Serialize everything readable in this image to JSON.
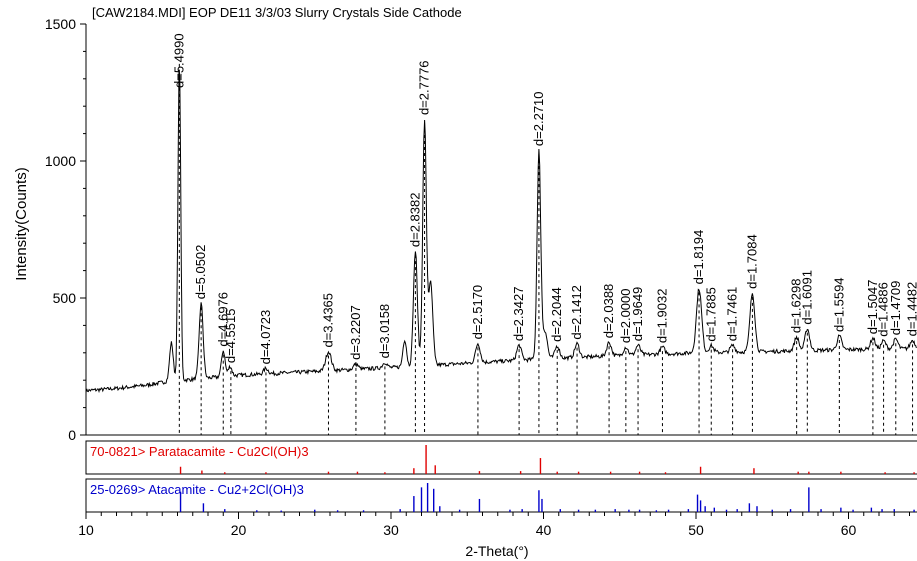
{
  "chart_data": {
    "type": "line",
    "title": "[CAW2184.MDI] EOP DE11 3/3/03 Slurry Crystals Side Cathode",
    "xlabel": "2-Theta(°)",
    "ylabel": "Intensity(Counts)",
    "xlim": [
      10,
      65
    ],
    "ylim": [
      0,
      1500
    ],
    "x_ticks": [
      "10",
      "20",
      "30",
      "40",
      "50",
      "60"
    ],
    "y_ticks": [
      "0",
      "500",
      "1000",
      "1500"
    ],
    "grid": false,
    "colors": {
      "pattern": "#000000",
      "ref1": "#e00000",
      "ref2": "#0000cc"
    },
    "baseline": [
      [
        10,
        162
      ],
      [
        12,
        170
      ],
      [
        14,
        182
      ],
      [
        15.3,
        195
      ],
      [
        20,
        218
      ],
      [
        25,
        232
      ],
      [
        30,
        246
      ],
      [
        35,
        262
      ],
      [
        40,
        278
      ],
      [
        45,
        290
      ],
      [
        50,
        300
      ],
      [
        55,
        305
      ],
      [
        60,
        312
      ],
      [
        65,
        316
      ]
    ],
    "peaks": [
      {
        "x": 15.6,
        "height": 140,
        "width": 0.12
      },
      {
        "x": 16.12,
        "height": 1170,
        "width": 0.09
      },
      {
        "x": 17.55,
        "height": 275,
        "width": 0.13
      },
      {
        "x": 19.0,
        "height": 95,
        "width": 0.12
      },
      {
        "x": 19.45,
        "height": 35,
        "width": 0.12
      },
      {
        "x": 21.8,
        "height": 20,
        "width": 0.15
      },
      {
        "x": 25.9,
        "height": 70,
        "width": 0.18
      },
      {
        "x": 27.7,
        "height": 20,
        "width": 0.15
      },
      {
        "x": 29.6,
        "height": 20,
        "width": 0.15
      },
      {
        "x": 30.9,
        "height": 100,
        "width": 0.12
      },
      {
        "x": 31.6,
        "height": 420,
        "width": 0.13
      },
      {
        "x": 32.2,
        "height": 895,
        "width": 0.12
      },
      {
        "x": 32.6,
        "height": 300,
        "width": 0.14
      },
      {
        "x": 35.7,
        "height": 70,
        "width": 0.15
      },
      {
        "x": 38.4,
        "height": 55,
        "width": 0.15
      },
      {
        "x": 39.7,
        "height": 760,
        "width": 0.12
      },
      {
        "x": 40.1,
        "height": 100,
        "width": 0.15
      },
      {
        "x": 40.9,
        "height": 45,
        "width": 0.15
      },
      {
        "x": 42.2,
        "height": 50,
        "width": 0.15
      },
      {
        "x": 44.3,
        "height": 50,
        "width": 0.15
      },
      {
        "x": 45.4,
        "height": 30,
        "width": 0.15
      },
      {
        "x": 46.2,
        "height": 35,
        "width": 0.15
      },
      {
        "x": 47.8,
        "height": 25,
        "width": 0.15
      },
      {
        "x": 50.2,
        "height": 235,
        "width": 0.17
      },
      {
        "x": 51.0,
        "height": 25,
        "width": 0.15
      },
      {
        "x": 52.4,
        "height": 25,
        "width": 0.15
      },
      {
        "x": 53.7,
        "height": 215,
        "width": 0.16
      },
      {
        "x": 56.6,
        "height": 50,
        "width": 0.15
      },
      {
        "x": 57.3,
        "height": 80,
        "width": 0.15
      },
      {
        "x": 59.4,
        "height": 50,
        "width": 0.15
      },
      {
        "x": 61.6,
        "height": 40,
        "width": 0.15
      },
      {
        "x": 62.3,
        "height": 30,
        "width": 0.15
      },
      {
        "x": 63.1,
        "height": 35,
        "width": 0.15
      },
      {
        "x": 64.2,
        "height": 30,
        "width": 0.15
      }
    ],
    "d_labels": [
      {
        "x": 16.12,
        "label": "d=5.4990"
      },
      {
        "x": 17.55,
        "label": "d=5.0502"
      },
      {
        "x": 19.0,
        "label": "d=4.6976"
      },
      {
        "x": 19.5,
        "label": "d=4.5515"
      },
      {
        "x": 21.8,
        "label": "d=4.0723"
      },
      {
        "x": 25.9,
        "label": "d=3.4365"
      },
      {
        "x": 27.7,
        "label": "d=3.2207"
      },
      {
        "x": 29.6,
        "label": "d=3.0158"
      },
      {
        "x": 31.6,
        "label": "d=2.8382"
      },
      {
        "x": 32.2,
        "label": "d=2.7776"
      },
      {
        "x": 35.7,
        "label": "d=2.5170"
      },
      {
        "x": 38.4,
        "label": "d=2.3427"
      },
      {
        "x": 39.7,
        "label": "d=2.2710"
      },
      {
        "x": 40.9,
        "label": "d=2.2044"
      },
      {
        "x": 42.2,
        "label": "d=2.1412"
      },
      {
        "x": 44.3,
        "label": "d=2.0388"
      },
      {
        "x": 45.4,
        "label": "d=2.0000"
      },
      {
        "x": 46.2,
        "label": "d=1.9649"
      },
      {
        "x": 47.8,
        "label": "d=1.9032"
      },
      {
        "x": 50.2,
        "label": "d=1.8194"
      },
      {
        "x": 51.0,
        "label": "d=1.7885"
      },
      {
        "x": 52.4,
        "label": "d=1.7461"
      },
      {
        "x": 53.7,
        "label": "d=1.7084"
      },
      {
        "x": 56.6,
        "label": "d=1.6298"
      },
      {
        "x": 57.3,
        "label": "d=1.6091"
      },
      {
        "x": 59.4,
        "label": "d=1.5594"
      },
      {
        "x": 61.6,
        "label": "d=1.5047"
      },
      {
        "x": 62.3,
        "label": "d=1.4886"
      },
      {
        "x": 63.1,
        "label": "d=1.4709"
      },
      {
        "x": 64.2,
        "label": "d=1.4482"
      }
    ],
    "reference_patterns": [
      {
        "label": "70-0821> Paratacamite - Cu2Cl(OH)3",
        "color": "#e00000",
        "lines": [
          [
            16.2,
            25
          ],
          [
            17.6,
            12
          ],
          [
            19.1,
            6
          ],
          [
            21.8,
            6
          ],
          [
            25.9,
            8
          ],
          [
            27.8,
            8
          ],
          [
            29.6,
            6
          ],
          [
            31.5,
            20
          ],
          [
            32.3,
            100
          ],
          [
            32.9,
            30
          ],
          [
            35.8,
            10
          ],
          [
            38.5,
            10
          ],
          [
            39.8,
            55
          ],
          [
            40.9,
            8
          ],
          [
            42.3,
            8
          ],
          [
            44.4,
            8
          ],
          [
            46.3,
            8
          ],
          [
            48.0,
            6
          ],
          [
            50.3,
            25
          ],
          [
            53.8,
            20
          ],
          [
            56.7,
            8
          ],
          [
            57.4,
            8
          ],
          [
            59.5,
            8
          ],
          [
            62.4,
            6
          ],
          [
            64.3,
            6
          ]
        ]
      },
      {
        "label": "25-0269> Atacamite - Cu2+2Cl(OH)3",
        "color": "#0000cc",
        "lines": [
          [
            16.2,
            70
          ],
          [
            17.7,
            30
          ],
          [
            19.1,
            10
          ],
          [
            21.2,
            6
          ],
          [
            22.8,
            5
          ],
          [
            25.0,
            8
          ],
          [
            26.5,
            6
          ],
          [
            28.2,
            6
          ],
          [
            30.6,
            10
          ],
          [
            31.5,
            55
          ],
          [
            32.0,
            85
          ],
          [
            32.4,
            100
          ],
          [
            32.8,
            80
          ],
          [
            33.2,
            20
          ],
          [
            34.5,
            8
          ],
          [
            35.8,
            45
          ],
          [
            37.8,
            8
          ],
          [
            38.6,
            10
          ],
          [
            39.7,
            75
          ],
          [
            39.9,
            45
          ],
          [
            41.1,
            10
          ],
          [
            42.3,
            8
          ],
          [
            43.4,
            8
          ],
          [
            44.7,
            10
          ],
          [
            45.6,
            8
          ],
          [
            46.3,
            8
          ],
          [
            47.4,
            6
          ],
          [
            48.2,
            8
          ],
          [
            49.5,
            10
          ],
          [
            50.1,
            60
          ],
          [
            50.3,
            40
          ],
          [
            50.6,
            20
          ],
          [
            51.2,
            15
          ],
          [
            52.0,
            8
          ],
          [
            52.7,
            10
          ],
          [
            53.5,
            30
          ],
          [
            54.0,
            20
          ],
          [
            55.0,
            8
          ],
          [
            56.2,
            10
          ],
          [
            57.4,
            85
          ],
          [
            58.2,
            10
          ],
          [
            59.5,
            15
          ],
          [
            60.3,
            8
          ],
          [
            61.5,
            15
          ],
          [
            62.2,
            10
          ],
          [
            63.0,
            10
          ],
          [
            64.3,
            8
          ]
        ]
      }
    ]
  }
}
